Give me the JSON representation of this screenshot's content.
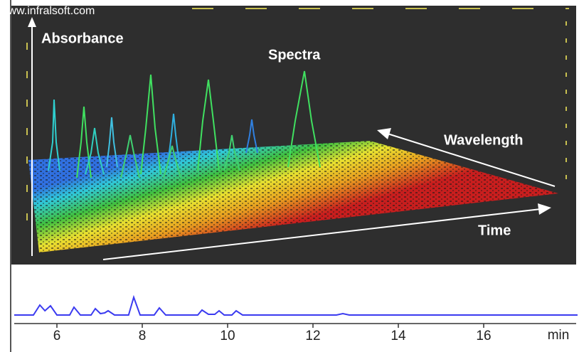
{
  "watermark": "www.infralsoft.com",
  "panel_3d": {
    "y_axis_label": "Absorbance",
    "peaks_label": "Spectra",
    "depth_axis_label": "Wavelength",
    "x_axis_label": "Time"
  },
  "chart_data": {
    "type": "line",
    "color": "#3b3bf0",
    "x": [
      5,
      5.45,
      5.6,
      5.72,
      5.85,
      6.0,
      6.3,
      6.4,
      6.55,
      6.8,
      6.9,
      7.02,
      7.12,
      7.2,
      7.35,
      7.68,
      7.8,
      7.95,
      8.28,
      8.4,
      8.55,
      9.3,
      9.4,
      9.55,
      9.7,
      9.8,
      9.92,
      10.1,
      10.2,
      10.35,
      12.55,
      12.7,
      12.85,
      18.2
    ],
    "values": [
      0,
      0,
      14,
      6,
      13,
      0,
      0,
      11,
      0,
      0,
      9,
      2,
      3,
      6,
      0,
      0,
      25,
      0,
      0,
      10,
      0,
      0,
      7,
      1,
      1,
      6,
      0,
      0,
      6,
      0,
      0,
      2,
      0,
      0
    ],
    "xlim": [
      5,
      18.2
    ],
    "ylim": [
      0,
      30
    ],
    "xticks": [
      6,
      8,
      10,
      12,
      14,
      16
    ],
    "x_unit_label": "min"
  }
}
